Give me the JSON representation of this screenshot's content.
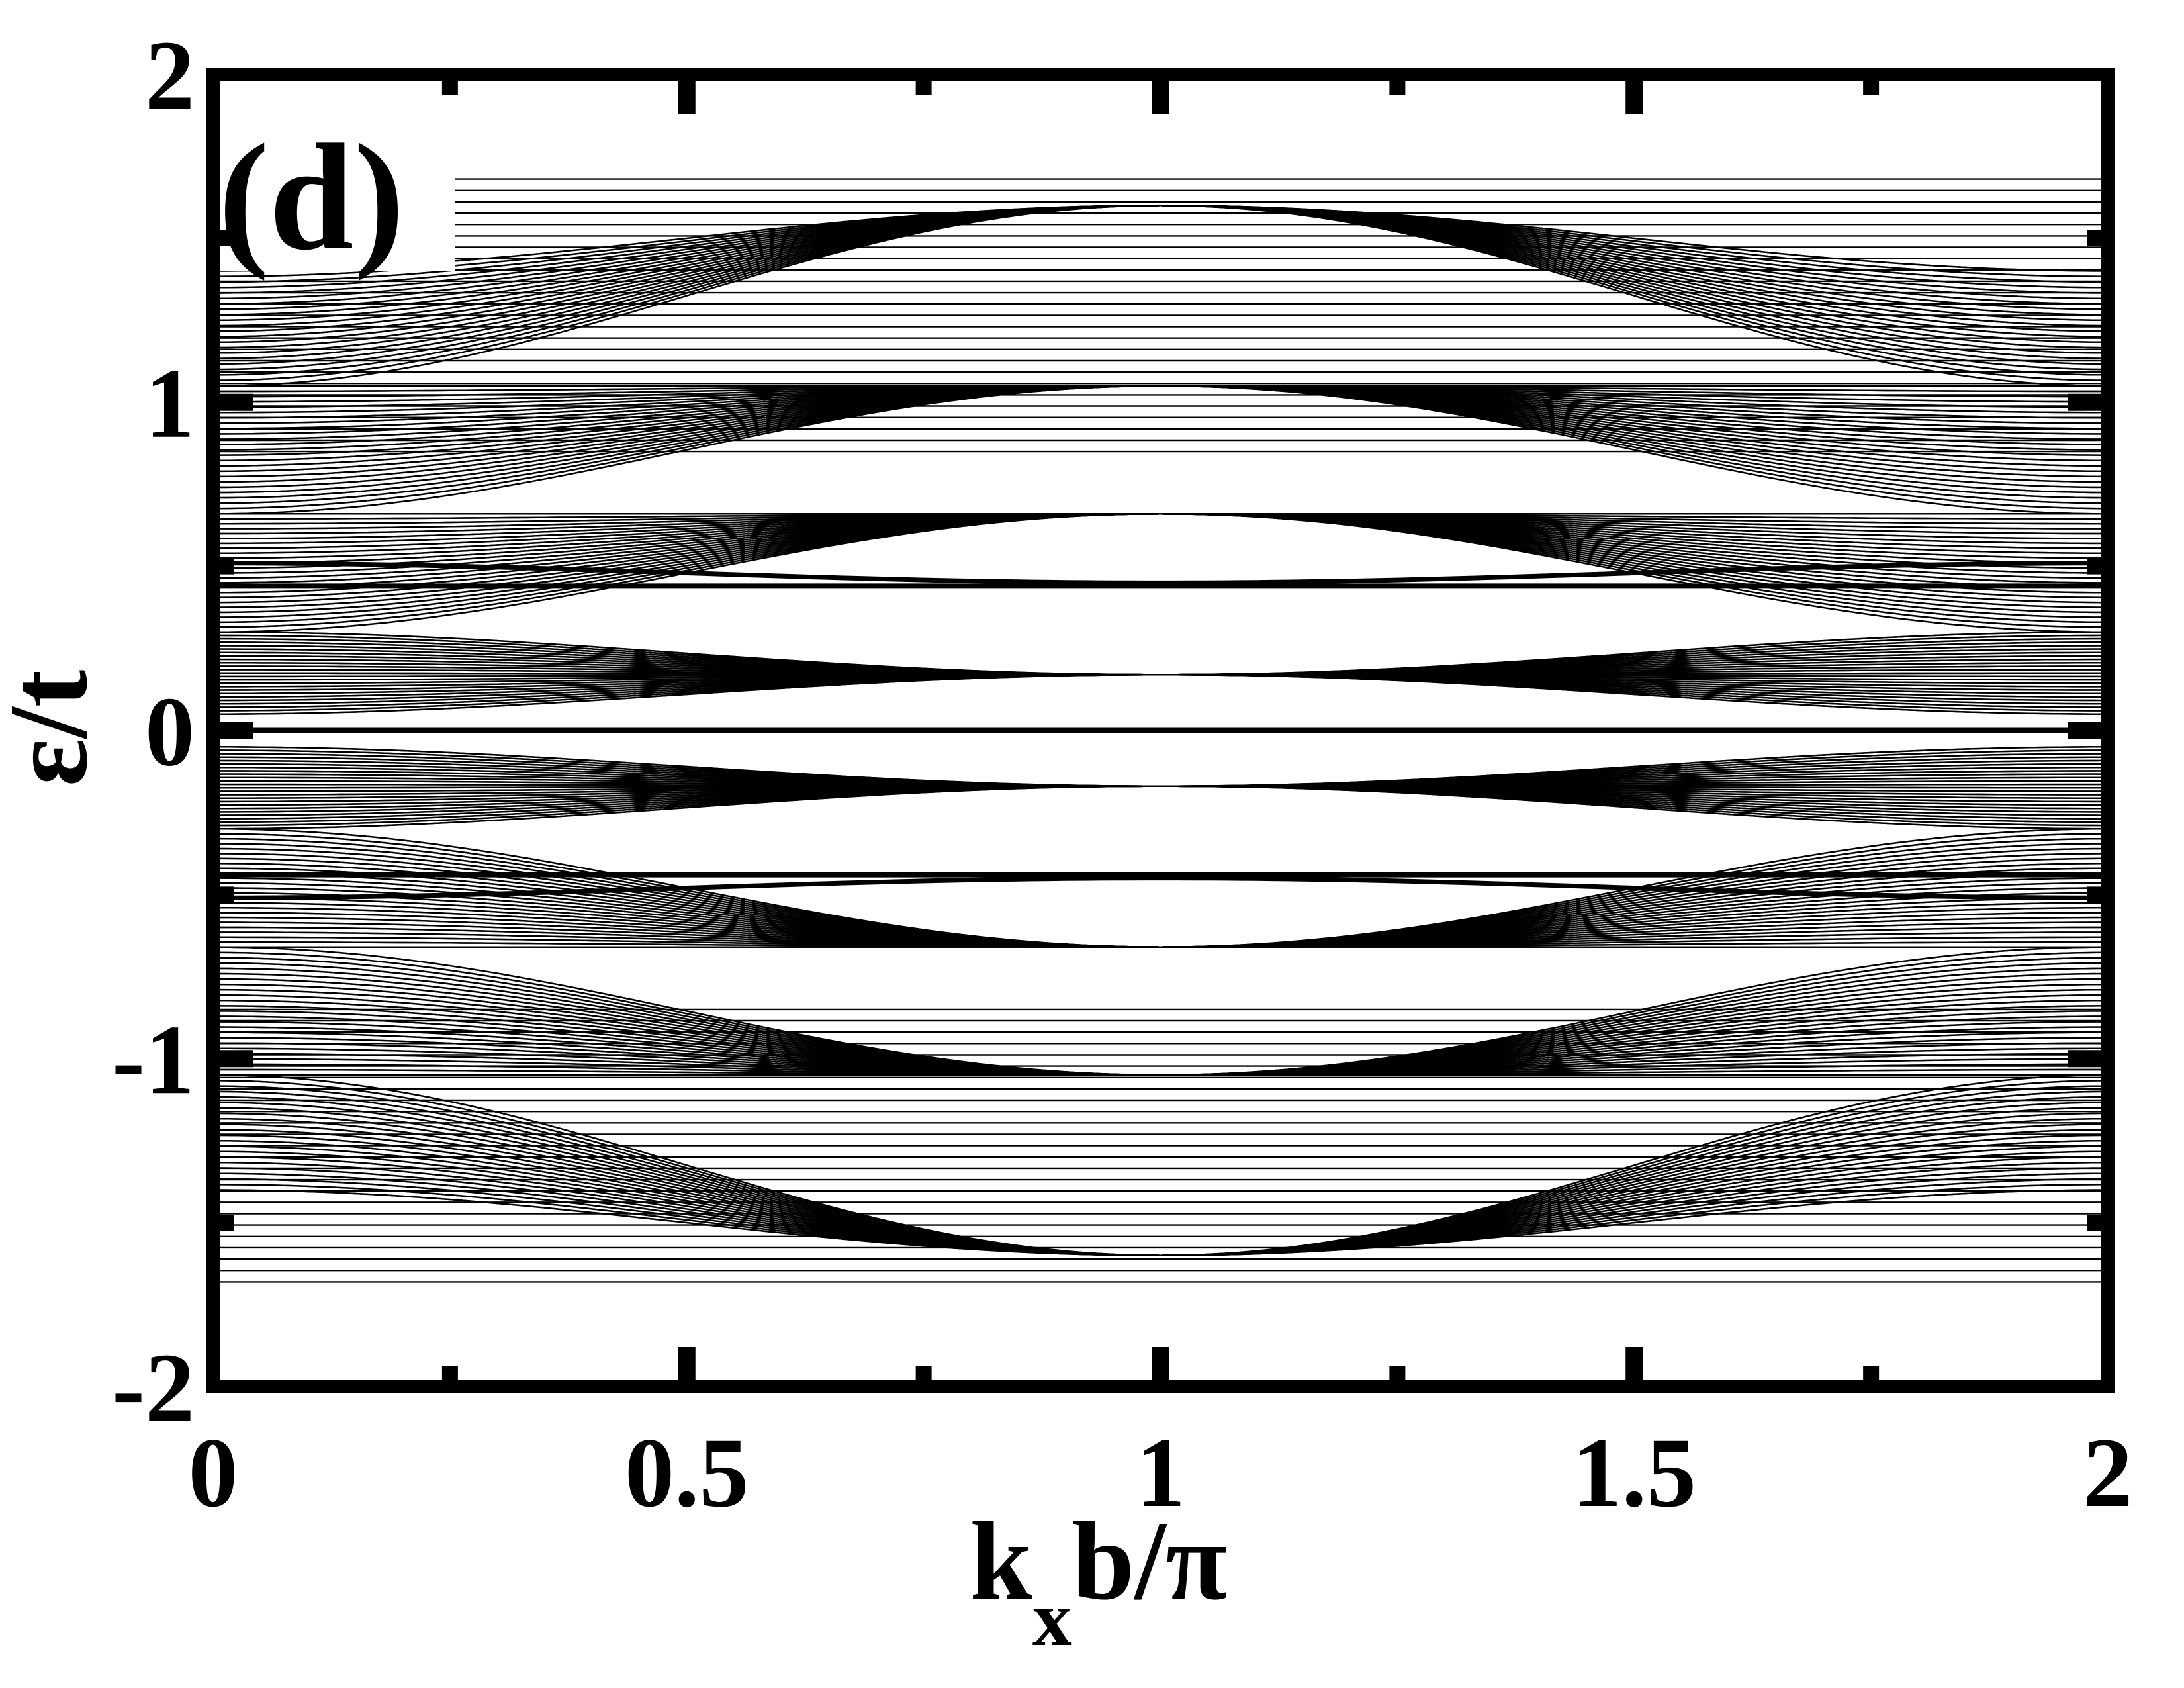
{
  "chart_data": {
    "type": "line",
    "panel_label": "(d)",
    "xlabel": {
      "base": "k",
      "sub": "x",
      "rest": "b/π"
    },
    "ylabel": "ε/t",
    "xlim": [
      0,
      2
    ],
    "ylim": [
      -2,
      2
    ],
    "xticks": [
      {
        "value": 0,
        "label": "0"
      },
      {
        "value": 0.5,
        "label": "0.5"
      },
      {
        "value": 1,
        "label": "1"
      },
      {
        "value": 1.5,
        "label": "1.5"
      },
      {
        "value": 2,
        "label": "2"
      }
    ],
    "yticks": [
      {
        "value": 2,
        "label": "2"
      },
      {
        "value": 1,
        "label": "1"
      },
      {
        "value": 0,
        "label": "0"
      },
      {
        "value": -1,
        "label": "-1"
      },
      {
        "value": -2,
        "label": "-2"
      }
    ],
    "x_minor_ticks": [
      0.25,
      0.75,
      1.25,
      1.75
    ],
    "y_minor_ticks": [
      1.5,
      0.5,
      -0.5,
      -1.5
    ],
    "grid": false,
    "line_color": "#000000",
    "flat_bands": [
      {
        "y": 0.44,
        "emphasis": "thick"
      },
      {
        "y": 0.0,
        "emphasis": "thick"
      },
      {
        "y": -0.44,
        "emphasis": "thick"
      }
    ],
    "edge_bands": [
      {
        "y_at_0": 0.51,
        "y_at_1": 0.45,
        "y_at_2": 0.51
      },
      {
        "y_at_0": -0.51,
        "y_at_1": -0.45,
        "y_at_2": -0.51
      }
    ],
    "families": [
      {
        "kind": "x",
        "count": 25,
        "y0_range": [
          0.05,
          0.3
        ],
        "y1": 0.17,
        "sign": 1
      },
      {
        "kind": "x",
        "count": 25,
        "y0_range": [
          0.3,
          0.66
        ],
        "y1": 0.66,
        "sign": 1
      },
      {
        "kind": "x",
        "count": 25,
        "y0_range": [
          0.66,
          1.05
        ],
        "y1": 1.05,
        "sign": 1
      },
      {
        "kind": "x",
        "count": 22,
        "y0_range": [
          1.05,
          1.4
        ],
        "y1": 1.6,
        "sign": 1
      },
      {
        "kind": "flat",
        "count": 25,
        "y_range": [
          0.85,
          1.68
        ]
      },
      {
        "kind": "x",
        "count": 25,
        "y0_range": [
          -0.3,
          -0.05
        ],
        "y1": -0.17,
        "sign": -1
      },
      {
        "kind": "x",
        "count": 25,
        "y0_range": [
          -0.66,
          -0.3
        ],
        "y1": -0.66,
        "sign": -1
      },
      {
        "kind": "x",
        "count": 25,
        "y0_range": [
          -1.05,
          -0.66
        ],
        "y1": -1.05,
        "sign": -1
      },
      {
        "kind": "x",
        "count": 22,
        "y0_range": [
          -1.4,
          -1.05
        ],
        "y1": -1.6,
        "sign": -1
      },
      {
        "kind": "flat",
        "count": 25,
        "y_range": [
          -1.68,
          -0.85
        ]
      }
    ]
  }
}
